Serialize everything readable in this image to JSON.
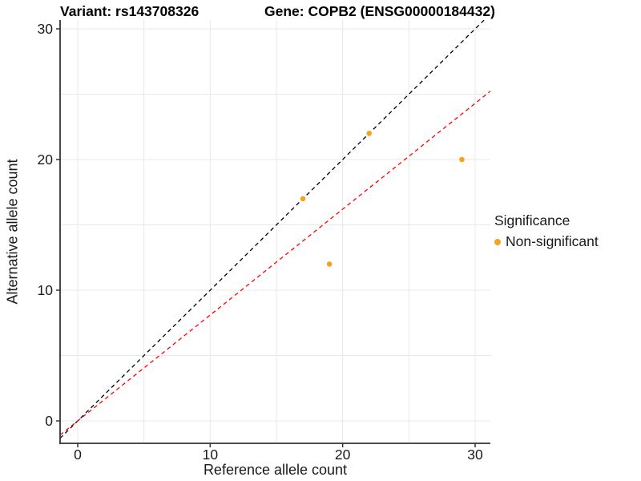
{
  "title": {
    "variant": "Variant: rs143708326",
    "gene": "Gene: COPB2 (ENSG00000184432)"
  },
  "axes": {
    "x_label": "Reference allele count",
    "y_label": "Alternative allele count"
  },
  "legend": {
    "title": "Significance",
    "items": [
      {
        "label": "Non-significant",
        "color": "#F9A11B"
      }
    ]
  },
  "chart_data": {
    "type": "scatter",
    "title": "Variant: rs143708326    Gene: COPB2 (ENSG00000184432)",
    "xlabel": "Reference allele count",
    "ylabel": "Alternative allele count",
    "xlim": [
      -1.35,
      31.15
    ],
    "ylim": [
      -1.7,
      30.7
    ],
    "x_ticks": [
      0,
      10,
      20,
      30
    ],
    "y_ticks": [
      0,
      10,
      20,
      30
    ],
    "grid": "on",
    "grid_step": 5,
    "legend_position": "right",
    "series": [
      {
        "name": "Non-significant",
        "color": "#F9A11B",
        "points": [
          [
            17,
            17
          ],
          [
            19,
            12
          ],
          [
            22,
            22
          ],
          [
            29,
            20
          ]
        ]
      }
    ],
    "lines": [
      {
        "name": "identity-line",
        "slope": 1,
        "intercept": 0,
        "color": "#000000",
        "dashed": true
      },
      {
        "name": "ratio-line",
        "slope": 0.81,
        "intercept": 0,
        "color": "#FF0000",
        "dashed": true
      }
    ],
    "colors": {
      "grid": "#E8E8E8",
      "axis": "#333333",
      "tick_text": "#1a1a1a",
      "point": "#F9A11B"
    }
  }
}
